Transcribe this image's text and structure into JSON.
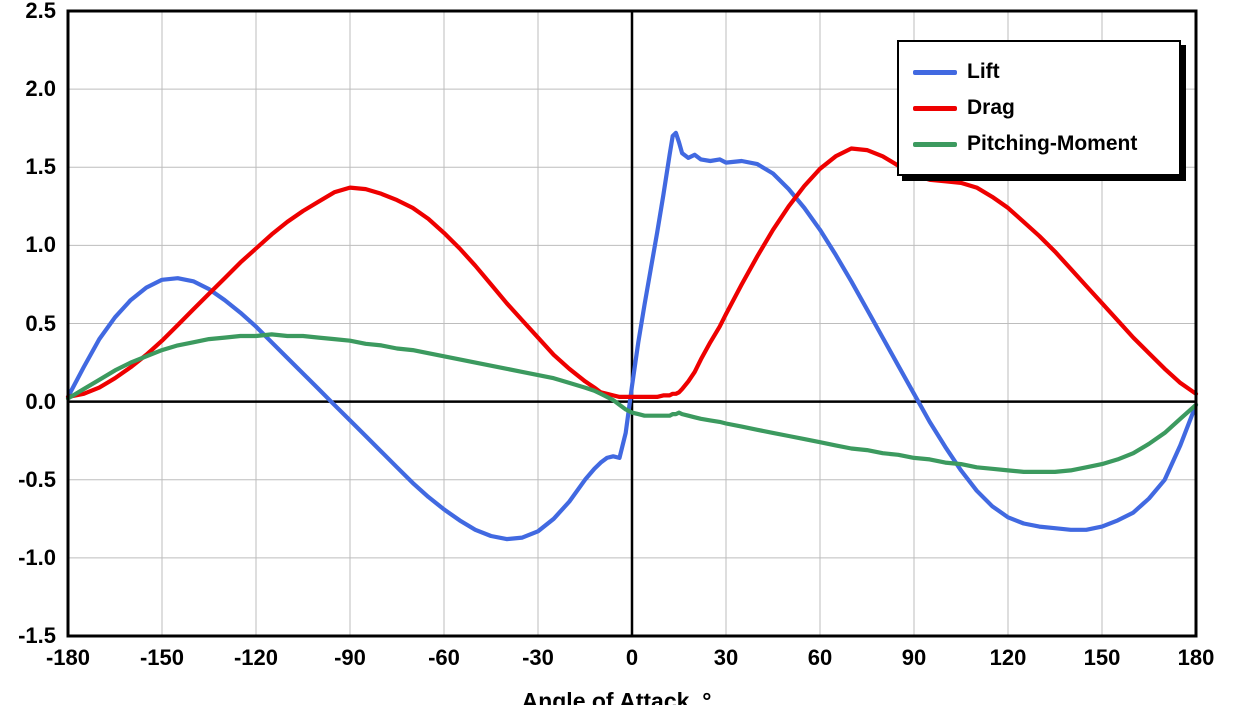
{
  "chart_data": {
    "type": "line",
    "title": "",
    "xlabel": "Angle of Attack, °",
    "ylabel": "",
    "xlim": [
      -180,
      180
    ],
    "ylim": [
      -1.5,
      2.5
    ],
    "x_ticks": [
      -180,
      -150,
      -120,
      -90,
      -60,
      -30,
      0,
      30,
      60,
      90,
      120,
      150,
      180
    ],
    "y_ticks": [
      2.5,
      2.0,
      1.5,
      1.0,
      0.5,
      0.0,
      -0.5,
      -1.0,
      -1.5
    ],
    "y_tick_labels": [
      "2.5",
      "2.0",
      "1.5",
      "1.0",
      "0.5",
      "0.0",
      "-0.5",
      "-1.0",
      "-1.5"
    ],
    "grid": true,
    "grid_color": "#bdbdbd",
    "frame_color": "#000000",
    "legend_position": "top-right",
    "x": [
      -180,
      -175,
      -170,
      -165,
      -160,
      -155,
      -150,
      -145,
      -140,
      -135,
      -130,
      -125,
      -120,
      -115,
      -110,
      -105,
      -100,
      -95,
      -90,
      -85,
      -80,
      -75,
      -70,
      -65,
      -60,
      -55,
      -50,
      -45,
      -40,
      -35,
      -30,
      -25,
      -20,
      -15,
      -12,
      -10,
      -8,
      -6,
      -4,
      -2,
      0,
      2,
      4,
      6,
      8,
      10,
      12,
      13,
      14,
      15,
      16,
      18,
      20,
      22,
      25,
      28,
      30,
      35,
      40,
      45,
      50,
      55,
      60,
      65,
      70,
      75,
      80,
      85,
      90,
      95,
      100,
      105,
      110,
      115,
      120,
      125,
      130,
      135,
      140,
      145,
      150,
      155,
      160,
      165,
      170,
      175,
      180
    ],
    "series": [
      {
        "id": "lift",
        "name": "Lift",
        "color": "#4169E1",
        "values": [
          0.03,
          0.22,
          0.4,
          0.54,
          0.65,
          0.73,
          0.78,
          0.79,
          0.77,
          0.72,
          0.65,
          0.57,
          0.48,
          0.38,
          0.28,
          0.18,
          0.08,
          -0.02,
          -0.12,
          -0.22,
          -0.32,
          -0.42,
          -0.52,
          -0.61,
          -0.69,
          -0.76,
          -0.82,
          -0.86,
          -0.88,
          -0.87,
          -0.83,
          -0.75,
          -0.64,
          -0.5,
          -0.43,
          -0.39,
          -0.36,
          -0.35,
          -0.36,
          -0.2,
          0.1,
          0.38,
          0.62,
          0.85,
          1.08,
          1.32,
          1.58,
          1.7,
          1.72,
          1.66,
          1.59,
          1.56,
          1.58,
          1.55,
          1.54,
          1.55,
          1.53,
          1.54,
          1.52,
          1.46,
          1.36,
          1.24,
          1.1,
          0.94,
          0.77,
          0.59,
          0.41,
          0.23,
          0.05,
          -0.13,
          -0.29,
          -0.44,
          -0.57,
          -0.67,
          -0.74,
          -0.78,
          -0.8,
          -0.81,
          -0.82,
          -0.82,
          -0.8,
          -0.76,
          -0.71,
          -0.62,
          -0.5,
          -0.28,
          -0.02
        ]
      },
      {
        "id": "drag",
        "name": "Drag",
        "color": "#EE0000",
        "values": [
          0.03,
          0.05,
          0.09,
          0.15,
          0.22,
          0.3,
          0.39,
          0.49,
          0.59,
          0.69,
          0.79,
          0.89,
          0.98,
          1.07,
          1.15,
          1.22,
          1.28,
          1.34,
          1.37,
          1.36,
          1.33,
          1.29,
          1.24,
          1.17,
          1.08,
          0.98,
          0.87,
          0.75,
          0.63,
          0.52,
          0.41,
          0.3,
          0.21,
          0.13,
          0.09,
          0.06,
          0.05,
          0.04,
          0.03,
          0.03,
          0.03,
          0.03,
          0.03,
          0.03,
          0.03,
          0.04,
          0.04,
          0.05,
          0.05,
          0.06,
          0.08,
          0.13,
          0.19,
          0.27,
          0.38,
          0.48,
          0.56,
          0.75,
          0.93,
          1.1,
          1.25,
          1.38,
          1.49,
          1.57,
          1.62,
          1.61,
          1.57,
          1.51,
          1.45,
          1.42,
          1.41,
          1.4,
          1.37,
          1.31,
          1.24,
          1.15,
          1.06,
          0.96,
          0.85,
          0.74,
          0.63,
          0.52,
          0.41,
          0.31,
          0.21,
          0.12,
          0.05
        ]
      },
      {
        "id": "pitching-moment",
        "name": "Pitching-Moment",
        "color": "#3C9A5F",
        "values": [
          0.02,
          0.08,
          0.14,
          0.2,
          0.25,
          0.29,
          0.33,
          0.36,
          0.38,
          0.4,
          0.41,
          0.42,
          0.42,
          0.43,
          0.42,
          0.42,
          0.41,
          0.4,
          0.39,
          0.37,
          0.36,
          0.34,
          0.33,
          0.31,
          0.29,
          0.27,
          0.25,
          0.23,
          0.21,
          0.19,
          0.17,
          0.15,
          0.12,
          0.09,
          0.07,
          0.05,
          0.03,
          0.01,
          -0.02,
          -0.05,
          -0.07,
          -0.08,
          -0.09,
          -0.09,
          -0.09,
          -0.09,
          -0.09,
          -0.08,
          -0.08,
          -0.07,
          -0.08,
          -0.09,
          -0.1,
          -0.11,
          -0.12,
          -0.13,
          -0.14,
          -0.16,
          -0.18,
          -0.2,
          -0.22,
          -0.24,
          -0.26,
          -0.28,
          -0.3,
          -0.31,
          -0.33,
          -0.34,
          -0.36,
          -0.37,
          -0.39,
          -0.4,
          -0.42,
          -0.43,
          -0.44,
          -0.45,
          -0.45,
          -0.45,
          -0.44,
          -0.42,
          -0.4,
          -0.37,
          -0.33,
          -0.27,
          -0.2,
          -0.11,
          -0.02
        ]
      }
    ]
  }
}
